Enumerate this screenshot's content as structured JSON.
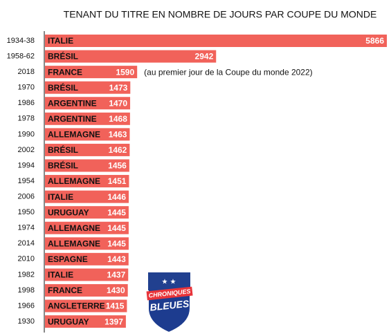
{
  "chart_data": {
    "type": "barh",
    "title": "TENANT DU TITRE EN NOMBRE DE JOURS PAR COUPE DU MONDE",
    "categories": [
      "1934-38",
      "1958-62",
      "2018",
      "1970",
      "1986",
      "1978",
      "1990",
      "2002",
      "1994",
      "1954",
      "2006",
      "1950",
      "1974",
      "2014",
      "2010",
      "1982",
      "1998",
      "1966",
      "1930"
    ],
    "bar_labels": [
      "ITALIE",
      "BRÉSIL",
      "FRANCE",
      "BRÉSIL",
      "ARGENTINE",
      "ARGENTINE",
      "ALLEMAGNE",
      "BRÉSIL",
      "BRÉSIL",
      "ALLEMAGNE",
      "ITALIE",
      "URUGUAY",
      "ALLEMAGNE",
      "ALLEMAGNE",
      "ESPAGNE",
      "ITALIE",
      "FRANCE",
      "ANGLETERRE",
      "URUGUAY"
    ],
    "values": [
      5866,
      2942,
      1590,
      1473,
      1470,
      1468,
      1463,
      1462,
      1456,
      1451,
      1446,
      1445,
      1445,
      1445,
      1443,
      1437,
      1430,
      1415,
      1397
    ],
    "color": "#f1625a",
    "annotation": "(au premier jour de la Coupe du monde 2022)"
  },
  "logo": {
    "line1": "CHRONIQUES",
    "line2": "BLEUES"
  }
}
